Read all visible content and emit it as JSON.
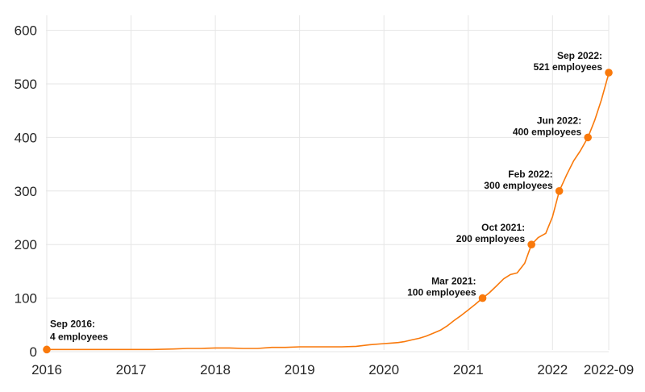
{
  "chart_data": {
    "type": "line",
    "title": "",
    "xlabel": "",
    "ylabel": "",
    "x_range": [
      2016,
      2022.667
    ],
    "y_range": [
      0,
      600
    ],
    "grid": true,
    "legend": "none",
    "line_color": "#f9790b",
    "marker_color": "#f9790b",
    "grid_color": "#e6e6e6",
    "tick_color": "#262626",
    "annotation_color": "#111111",
    "x_ticks": [
      {
        "label": "2016",
        "x": 2016
      },
      {
        "label": "2017",
        "x": 2017
      },
      {
        "label": "2018",
        "x": 2018
      },
      {
        "label": "2019",
        "x": 2019
      },
      {
        "label": "2020",
        "x": 2020
      },
      {
        "label": "2021",
        "x": 2021
      },
      {
        "label": "2022",
        "x": 2022
      },
      {
        "label": "2022-09",
        "x": 2022.667
      }
    ],
    "y_ticks": [
      {
        "label": "0",
        "y": 0
      },
      {
        "label": "100",
        "y": 100
      },
      {
        "label": "200",
        "y": 200
      },
      {
        "label": "300",
        "y": 300
      },
      {
        "label": "400",
        "y": 400
      },
      {
        "label": "500",
        "y": 500
      },
      {
        "label": "600",
        "y": 600
      }
    ],
    "series": [
      {
        "name": "employees",
        "points": [
          [
            2016.0,
            4
          ],
          [
            2016.25,
            4
          ],
          [
            2016.5,
            4
          ],
          [
            2016.75,
            4
          ],
          [
            2017.0,
            4
          ],
          [
            2017.25,
            4
          ],
          [
            2017.5,
            5
          ],
          [
            2017.67,
            6
          ],
          [
            2017.83,
            6
          ],
          [
            2018.0,
            7
          ],
          [
            2018.17,
            7
          ],
          [
            2018.33,
            6
          ],
          [
            2018.5,
            6
          ],
          [
            2018.67,
            8
          ],
          [
            2018.83,
            8
          ],
          [
            2019.0,
            9
          ],
          [
            2019.25,
            9
          ],
          [
            2019.5,
            9
          ],
          [
            2019.67,
            10
          ],
          [
            2019.83,
            13
          ],
          [
            2020.0,
            15
          ],
          [
            2020.08,
            16
          ],
          [
            2020.17,
            17
          ],
          [
            2020.25,
            19
          ],
          [
            2020.33,
            22
          ],
          [
            2020.42,
            25
          ],
          [
            2020.5,
            29
          ],
          [
            2020.58,
            34
          ],
          [
            2020.67,
            40
          ],
          [
            2020.75,
            48
          ],
          [
            2020.83,
            58
          ],
          [
            2020.92,
            68
          ],
          [
            2021.0,
            78
          ],
          [
            2021.08,
            88
          ],
          [
            2021.17,
            100
          ],
          [
            2021.25,
            110
          ],
          [
            2021.33,
            122
          ],
          [
            2021.42,
            136
          ],
          [
            2021.5,
            144
          ],
          [
            2021.58,
            147
          ],
          [
            2021.67,
            165
          ],
          [
            2021.75,
            200
          ],
          [
            2021.83,
            213
          ],
          [
            2021.92,
            221
          ],
          [
            2022.0,
            252
          ],
          [
            2022.08,
            300
          ],
          [
            2022.17,
            331
          ],
          [
            2022.25,
            356
          ],
          [
            2022.33,
            375
          ],
          [
            2022.42,
            400
          ],
          [
            2022.5,
            432
          ],
          [
            2022.58,
            470
          ],
          [
            2022.67,
            521
          ]
        ]
      }
    ],
    "annotations": [
      {
        "line1": "Sep 2016:",
        "line2": "4 employees",
        "x": 2016.0,
        "value": 4,
        "align": "left"
      },
      {
        "line1": "Mar 2021:",
        "line2": "100 employees",
        "x": 2021.17,
        "value": 100,
        "align": "right"
      },
      {
        "line1": "Oct 2021:",
        "line2": "200 employees",
        "x": 2021.75,
        "value": 200,
        "align": "right"
      },
      {
        "line1": "Feb 2022:",
        "line2": "300 employees",
        "x": 2022.08,
        "value": 300,
        "align": "right"
      },
      {
        "line1": "Jun 2022:",
        "line2": "400 employees",
        "x": 2022.42,
        "value": 400,
        "align": "right"
      },
      {
        "line1": "Sep 2022:",
        "line2": "521 employees",
        "x": 2022.667,
        "value": 521,
        "align": "right"
      }
    ]
  }
}
